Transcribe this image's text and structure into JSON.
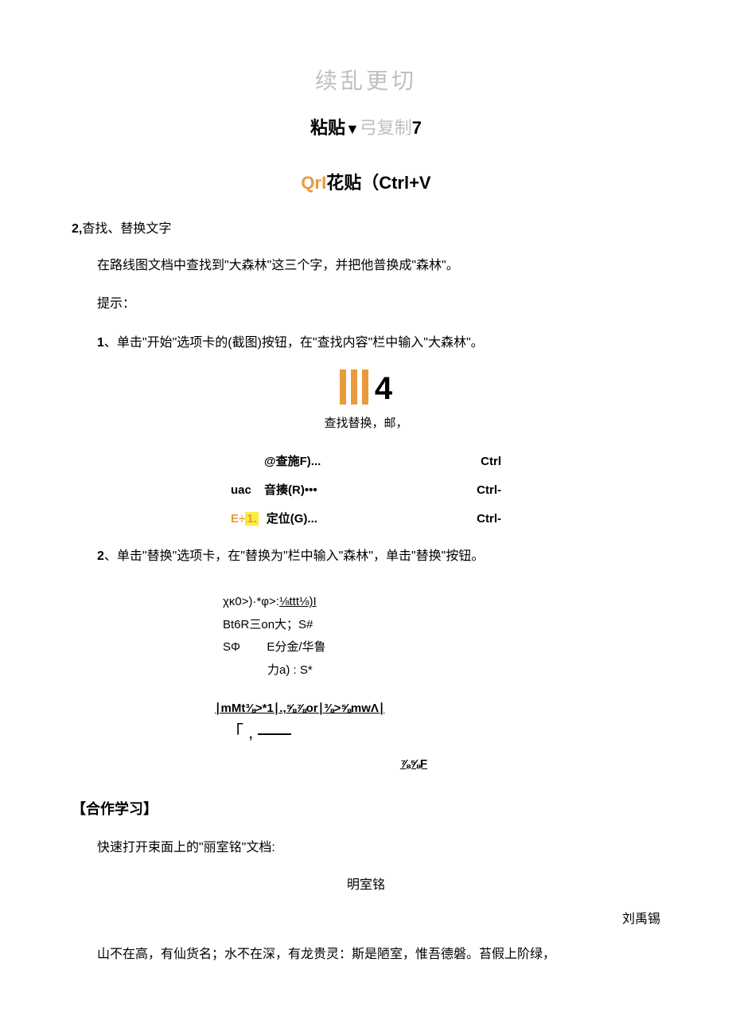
{
  "title_gray": "续乱更切",
  "title2_a": "粘贴",
  "title2_triangle": "▼",
  "title2_gray": "弓复制",
  "title2_b": "7",
  "title3_orange": "QrI",
  "title3_rest": "花贴（Ctrl+V",
  "sect2_num": "2,",
  "sect2_txt": "杳找、替换文字",
  "p_find": "在路线图文档中查找到\"大森林\"这三个字，并把他普换成\"森林\"。",
  "p_hint": "提示：",
  "p_step1_num": "1",
  "p_step1_txt": "、单击\"开始\"选项卡的(截图)按钮，在\"查找内容\"栏中输入\"大森林\"。",
  "four": "4",
  "caption1": "查找替换，邮，",
  "menu": {
    "r1_l": "@查施F)...",
    "r1_r": "Ctrl",
    "r2_ic": "uac",
    "r2_l": "音揍(R)•••",
    "r2_r": "Ctrl-",
    "r3_a": "E÷",
    "r3_b": "1.",
    "r3_l": "定位(G)...",
    "r3_r": "Ctrl-"
  },
  "p_step2_num": "2",
  "p_step2_txt": "、单击\"替换\"选项卡，在\"替换为\"栏中输入\"森林\"，单击\"替换\"按钮。",
  "garble": {
    "l1": "χκ0>)·*φ>:⅛ttt⅛)I",
    "l2": "Bt6R三on大；S#",
    "l3a": "SΦ",
    "l3b": "E分金/华鲁",
    "l4": "力a) : S*"
  },
  "garble2": {
    "l1": "∣mMt⅜>*1∣.,⅝⅞or∣⅜>⅝mwΛ∣",
    "l2a": "「 , ",
    "l3": "⅞⅝F"
  },
  "bighead": "【合作学习】",
  "p_open": "快速打开束面上的\"丽室铭\"文档:",
  "poem_title": "明室铭",
  "author": "刘禹锡",
  "poem_line": "山不在高，有仙货名；水不在深，有龙贵灵：斯是陋室，惟吾德磐。苔假上阶绿，"
}
